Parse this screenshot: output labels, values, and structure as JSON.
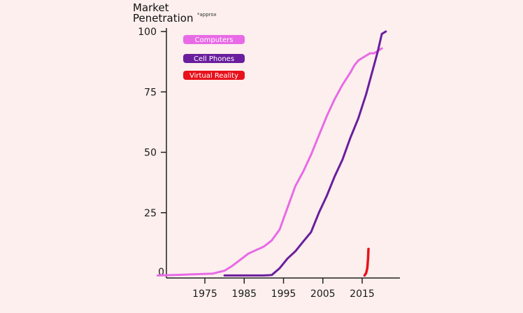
{
  "chart_data": {
    "type": "line",
    "title_line1": "Market",
    "title_line2": "Penetration",
    "title_note": "*approx",
    "xlabel": "",
    "ylabel": "",
    "xlim": [
      1963,
      2022
    ],
    "ylim": [
      0,
      100
    ],
    "x_ticks": [
      1975,
      1985,
      1995,
      2005,
      2015
    ],
    "y_ticks": [
      100,
      75,
      50,
      25,
      0
    ],
    "grid": false,
    "legend_position": "top-left",
    "series": [
      {
        "name": "Computers",
        "color": "#e86ae6",
        "x": [
          1963,
          1967,
          1972,
          1977,
          1980,
          1982,
          1984,
          1986,
          1988,
          1990,
          1992,
          1994,
          1996,
          1998,
          2000,
          2002,
          2004,
          2006,
          2008,
          2010,
          2012,
          2013,
          2014,
          2015,
          2016,
          2017,
          2018,
          2019,
          2020
        ],
        "y": [
          -1,
          -0.8,
          -0.5,
          -0.2,
          1,
          3,
          5.5,
          8,
          9.5,
          11,
          13.5,
          18,
          27,
          36,
          42,
          49,
          57,
          65,
          72,
          78,
          83,
          86,
          88,
          89,
          90,
          91,
          91,
          92,
          93
        ]
      },
      {
        "name": "Cell Phones",
        "color": "#6a1e9e",
        "x": [
          1980,
          1985,
          1990,
          1992,
          1994,
          1996,
          1998,
          2000,
          2002,
          2004,
          2006,
          2008,
          2010,
          2012,
          2014,
          2016,
          2018,
          2019,
          2020,
          2021
        ],
        "y": [
          -1,
          -1,
          -1,
          -0.8,
          2,
          6,
          9,
          13,
          17,
          25,
          32,
          40,
          47,
          56,
          64,
          74,
          86,
          92,
          99,
          100
        ]
      },
      {
        "name": "Virtual Reality",
        "color": "#e8111b",
        "x": [
          2015.6,
          2016,
          2016.3,
          2016.5,
          2016.6
        ],
        "y": [
          -1,
          0,
          2,
          6,
          10
        ]
      }
    ]
  }
}
